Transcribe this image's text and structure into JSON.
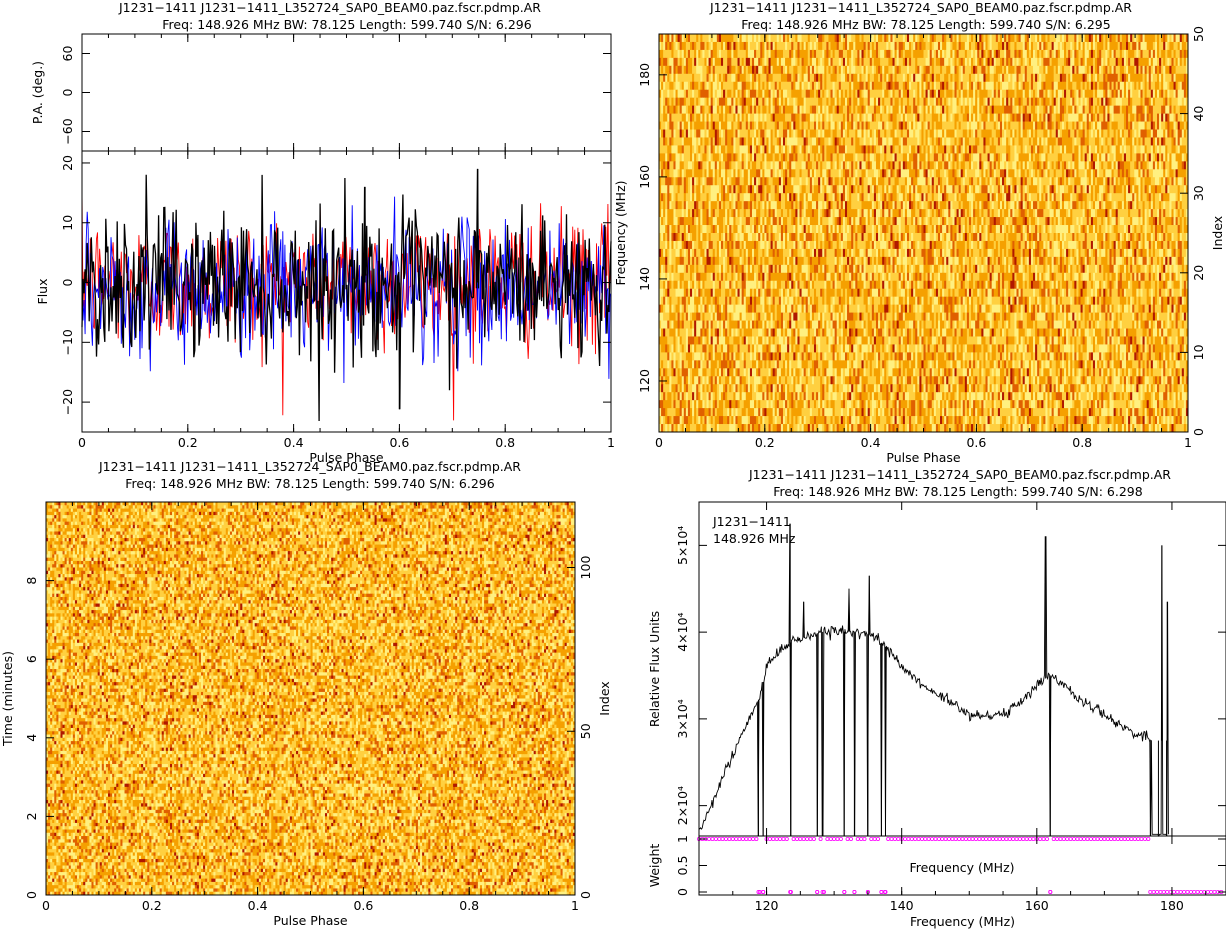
{
  "panels": {
    "profile": {
      "title1": "J1231−1411 J1231−1411_L352724_SAP0_BEAM0.paz.fscr.pdmp.AR",
      "title2": "Freq: 148.926 MHz BW: 78.125 Length: 599.740 S/N: 6.296"
    },
    "freq_phase": {
      "title1": "J1231−1411 J1231−1411_L352724_SAP0_BEAM0.paz.fscr.pdmp.AR",
      "title2": "Freq: 148.926 MHz BW: 78.125 Length: 599.740 S/N: 6.295"
    },
    "time_phase": {
      "title1": "J1231−1411 J1231−1411_L352724_SAP0_BEAM0.paz.fscr.pdmp.AR",
      "title2": "Freq: 148.926 MHz BW: 78.125 Length: 599.740 S/N: 6.296"
    },
    "bandpass": {
      "title1": "J1231−1411 J1231−1411_L352724_SAP0_BEAM0.paz.fscr.pdmp.AR",
      "title2": "Freq: 148.926 MHz BW: 78.125 Length: 599.740 S/N: 6.298",
      "annot1": "J1231−1411",
      "annot2": "148.926 MHz"
    }
  },
  "chart_data": [
    {
      "id": "pa",
      "type": "scatter",
      "ylabel": "P.A. (deg.)",
      "xlim": [
        0,
        1
      ],
      "ylim": [
        -90,
        90
      ],
      "yticks": [
        60,
        0,
        -60
      ],
      "yticklabels": [
        "60",
        "0",
        "−60"
      ]
    },
    {
      "id": "profile",
      "type": "line",
      "xlabel": "Pulse Phase",
      "ylabel": "Flux",
      "xlim": [
        0,
        1
      ],
      "ylim": [
        -25,
        22
      ],
      "xticks": [
        0,
        0.2,
        0.4,
        0.6,
        0.8,
        1
      ],
      "xticklabels": [
        "0",
        "0.2",
        "0.4",
        "0.6",
        "0.8",
        "1"
      ],
      "yticks": [
        20,
        10,
        0,
        -10,
        -20
      ],
      "yticklabels": [
        "20",
        "10",
        "0",
        "−10",
        "−20"
      ],
      "series": [
        {
          "color": "#ff0000",
          "nbins": 512,
          "mean": 0,
          "std": 5.5
        },
        {
          "color": "#0000ff",
          "nbins": 512,
          "mean": -1,
          "std": 5.5
        },
        {
          "color": "#000000",
          "nbins": 512,
          "mean": 0,
          "std": 6,
          "notable_points": [
            {
              "x": 0.6,
              "y": -21.2
            },
            {
              "x": 0.748,
              "y": 19
            },
            {
              "x": 0.535,
              "y": 16
            }
          ]
        }
      ]
    },
    {
      "id": "freq_phase",
      "type": "heatmap",
      "xlabel": "Pulse Phase",
      "ylabel": "Frequency (MHz)",
      "right_label": "Index",
      "xlim": [
        0,
        1
      ],
      "ylim": [
        110,
        188
      ],
      "right_ylim": [
        0,
        50
      ],
      "xticks": [
        0,
        0.2,
        0.4,
        0.6,
        0.8,
        1
      ],
      "xticklabels": [
        "0",
        "0.2",
        "0.4",
        "0.6",
        "0.8",
        "1"
      ],
      "yticks": [
        120,
        140,
        160,
        180
      ],
      "yticklabels": [
        "120",
        "140",
        "160",
        "180"
      ],
      "right_ticks": [
        0,
        10,
        20,
        30,
        40,
        50
      ],
      "right_ticklabels": [
        "0",
        "10",
        "20",
        "30",
        "40",
        "50"
      ],
      "n_rows": 50,
      "n_cols": 256,
      "colormap": [
        "#b01800",
        "#e06000",
        "#f5a000",
        "#ffd040",
        "#fff080"
      ]
    },
    {
      "id": "time_phase",
      "type": "heatmap",
      "xlabel": "Pulse Phase",
      "ylabel": "Time (minutes)",
      "right_label": "Index",
      "xlim": [
        0,
        1
      ],
      "ylim": [
        0,
        10
      ],
      "right_ylim": [
        0,
        120
      ],
      "xticks": [
        0,
        0.2,
        0.4,
        0.6,
        0.8,
        1
      ],
      "xticklabels": [
        "0",
        "0.2",
        "0.4",
        "0.6",
        "0.8",
        "1"
      ],
      "yticks": [
        0,
        2,
        4,
        6,
        8
      ],
      "yticklabels": [
        "0",
        "2",
        "4",
        "6",
        "8"
      ],
      "right_ticks": [
        0,
        50,
        100
      ],
      "right_ticklabels": [
        "0",
        "50",
        "100"
      ],
      "n_rows": 120,
      "n_cols": 256,
      "colormap": [
        "#b01800",
        "#e06000",
        "#f5a000",
        "#ffd040",
        "#fff080"
      ]
    },
    {
      "id": "bandpass",
      "type": "line",
      "ylabel": "Relative Flux Units",
      "xlim": [
        110,
        188
      ],
      "ylim": [
        16500,
        55000
      ],
      "yticks": [
        20000,
        30000,
        40000,
        50000
      ],
      "yticklabels": [
        "2×10⁴",
        "3×10⁴",
        "4×10⁴",
        "5×10⁴"
      ],
      "series": [
        {
          "color": "#000000",
          "x": [
            110,
            112,
            114,
            116,
            118,
            119,
            120,
            122,
            124,
            126,
            128,
            130,
            132,
            134,
            136,
            138,
            140,
            142,
            144,
            146,
            148,
            150,
            152,
            154,
            156,
            158,
            160,
            162,
            164,
            166,
            168,
            170,
            172,
            174,
            176,
            177
          ],
          "y": [
            17000,
            20500,
            24000,
            27500,
            31000,
            32500,
            36000,
            38000,
            39000,
            39500,
            40000,
            40200,
            40000,
            40000,
            39500,
            38000,
            36000,
            34500,
            33500,
            32500,
            31500,
            30500,
            30200,
            30300,
            31000,
            32000,
            34000,
            35000,
            34000,
            32500,
            31500,
            30500,
            29500,
            28500,
            28000,
            27500
          ]
        },
        {
          "color": "#000000",
          "role": "spikes_and_dropouts",
          "spikes": [
            {
              "x": 123.5,
              "y": 52500
            },
            {
              "x": 125.5,
              "y": 43500
            },
            {
              "x": 132.2,
              "y": 45000
            },
            {
              "x": 135.2,
              "y": 46500
            },
            {
              "x": 161.3,
              "y": 51000
            },
            {
              "x": 178.5,
              "y": 50000
            },
            {
              "x": 179.3,
              "y": 43500
            }
          ],
          "dropouts_x": [
            118.8,
            119.5,
            123.6,
            127.5,
            128.3,
            131.5,
            133,
            135,
            137,
            137.6,
            162,
            176.8,
            178,
            179.2
          ]
        }
      ]
    },
    {
      "id": "weight",
      "type": "scatter",
      "xlabel": "Frequency (MHz)",
      "ylabel": "Weight",
      "xlim": [
        110,
        188
      ],
      "ylim": [
        0,
        1
      ],
      "xticks": [
        120,
        140,
        160,
        180
      ],
      "xticklabels": [
        "120",
        "140",
        "160",
        "180"
      ],
      "yticks": [
        0,
        0.5,
        1
      ],
      "yticklabels": [
        "0",
        "0.5",
        "1"
      ],
      "marker_color": "#ff00ff",
      "zero_weight_x": [
        118.8,
        119.5,
        123.6,
        127.5,
        128.3,
        131.5,
        133,
        135,
        137,
        137.6,
        162,
        176.8,
        177.3,
        177.8,
        178.3,
        178.8,
        179.3,
        179.8,
        180.3,
        180.8,
        181.3,
        181.8,
        182.3,
        182.8,
        183.3,
        183.8,
        184.3,
        184.8,
        185.3,
        185.8,
        186.3,
        186.8,
        187.3
      ],
      "channel_range": [
        110,
        176.8
      ],
      "channel_step": 0.5
    }
  ]
}
